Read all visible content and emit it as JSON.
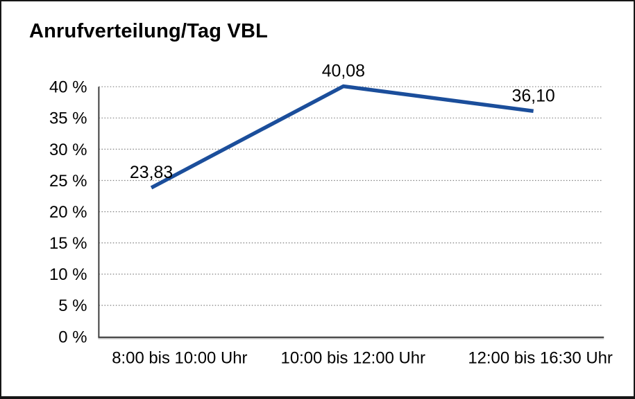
{
  "chart_data": {
    "type": "line",
    "title": "Anrufverteilung/Tag VBL",
    "categories": [
      "8:00 bis 10:00 Uhr",
      "10:00 bis 12:00 Uhr",
      "12:00 bis 16:30 Uhr"
    ],
    "values": [
      23.83,
      40.08,
      36.1
    ],
    "point_labels": [
      "23,83",
      "40,08",
      "36,10"
    ],
    "xlabel": "",
    "ylabel": "",
    "ylim": [
      0,
      40
    ],
    "ytick_step": 5,
    "ytick_labels": [
      "0 %",
      "5 %",
      "10 %",
      "15 %",
      "20 %",
      "25 %",
      "30 %",
      "35 %",
      "40 %"
    ],
    "grid": "horizontal-dotted",
    "legend": "none",
    "colors": {
      "line": "#1b4e9b",
      "grid": "#7f7f7f",
      "axis": "#3c3c3c",
      "axis_shadow": "#9b9b9b",
      "text": "#000000",
      "background": "#ffffff",
      "border": "#161616"
    }
  }
}
